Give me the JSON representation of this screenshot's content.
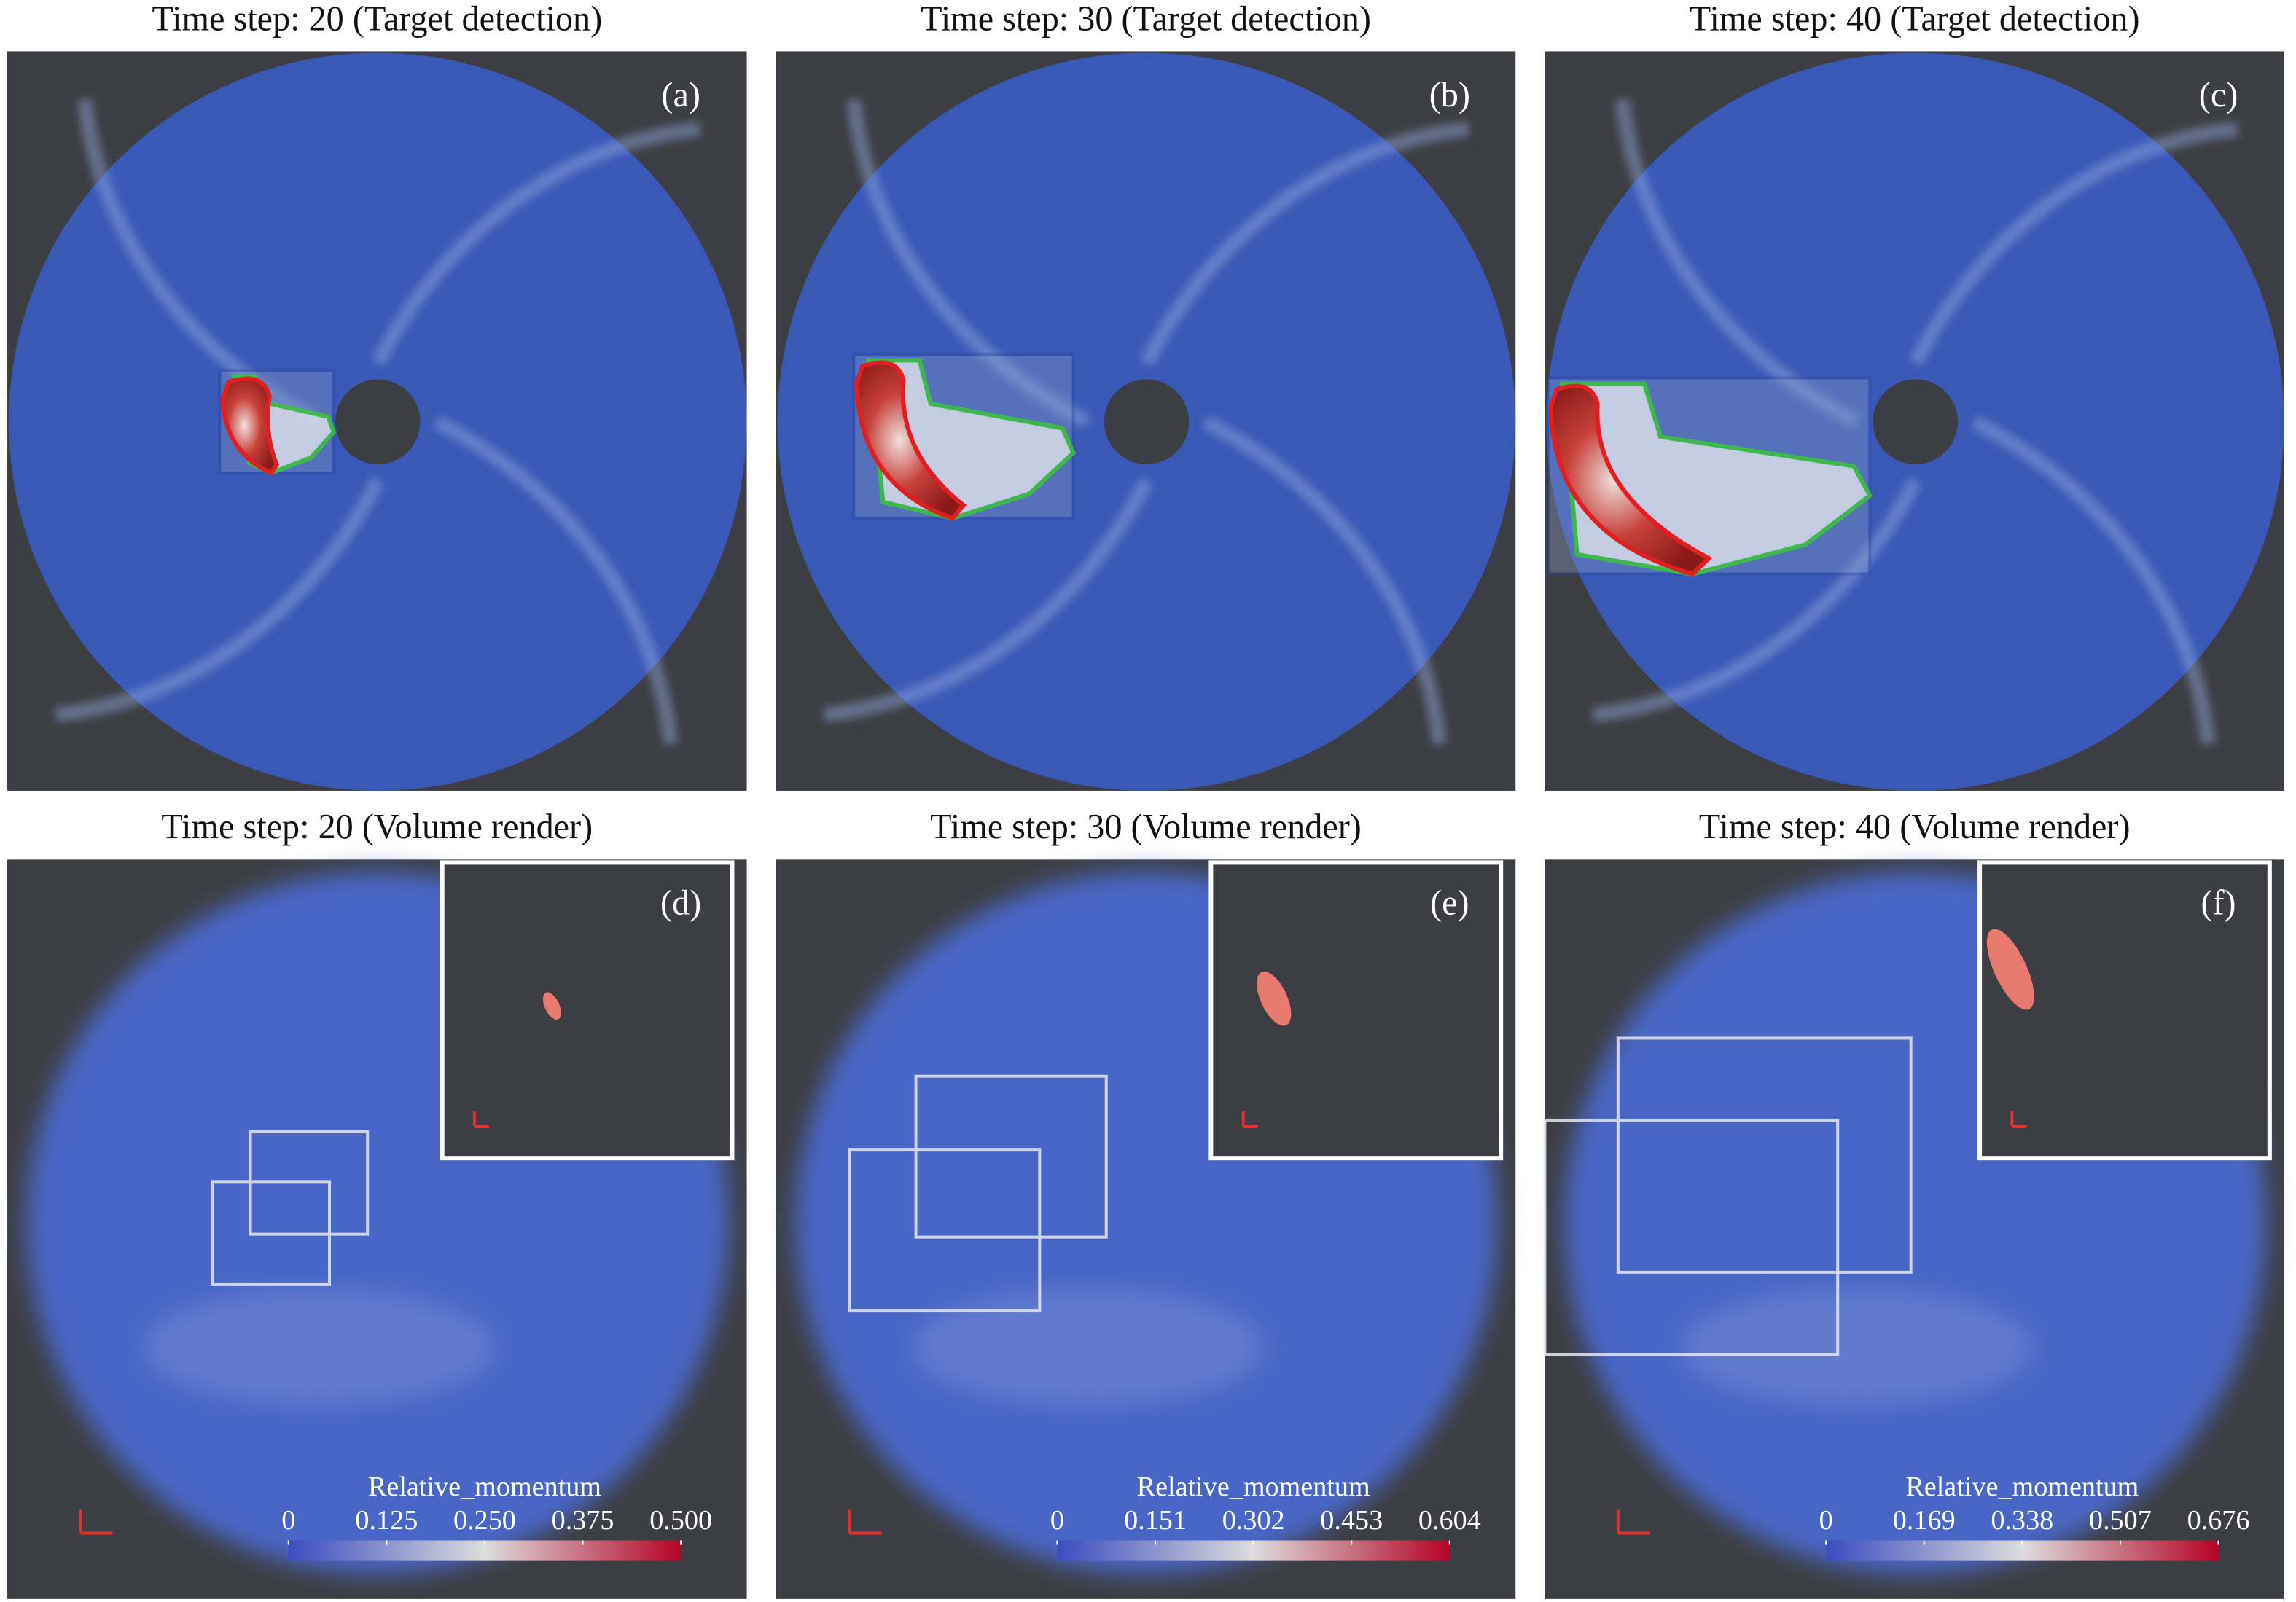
{
  "panels": [
    {
      "title": "Time step: 20 (Target detection)",
      "label": "(a)"
    },
    {
      "title": "Time step: 30 (Target detection)",
      "label": "(b)"
    },
    {
      "title": "Time step: 40 (Target detection)",
      "label": "(c)"
    },
    {
      "title": "Time step: 20 (Volume render)",
      "label": "(d)"
    },
    {
      "title": "Time step: 30 (Volume render)",
      "label": "(e)"
    },
    {
      "title": "Time step: 40 (Volume render)",
      "label": "(f)"
    }
  ],
  "colorbars": [
    {
      "title": "Relative_momentum",
      "lim": [
        0,
        0.5
      ],
      "ticks": [
        0,
        0.125,
        {
          "value": 0.25,
          "label": "0.250"
        },
        0.375,
        {
          "value": 0.5,
          "label": "0.500"
        }
      ]
    },
    {
      "title": "Relative_momentum",
      "lim": [
        0,
        0.604
      ],
      "ticks": [
        0,
        0.151,
        0.302,
        0.453,
        0.604
      ]
    },
    {
      "title": "Relative_momentum",
      "lim": [
        0,
        0.676
      ],
      "ticks": [
        0,
        0.169,
        0.338,
        0.507,
        0.676
      ]
    }
  ]
}
